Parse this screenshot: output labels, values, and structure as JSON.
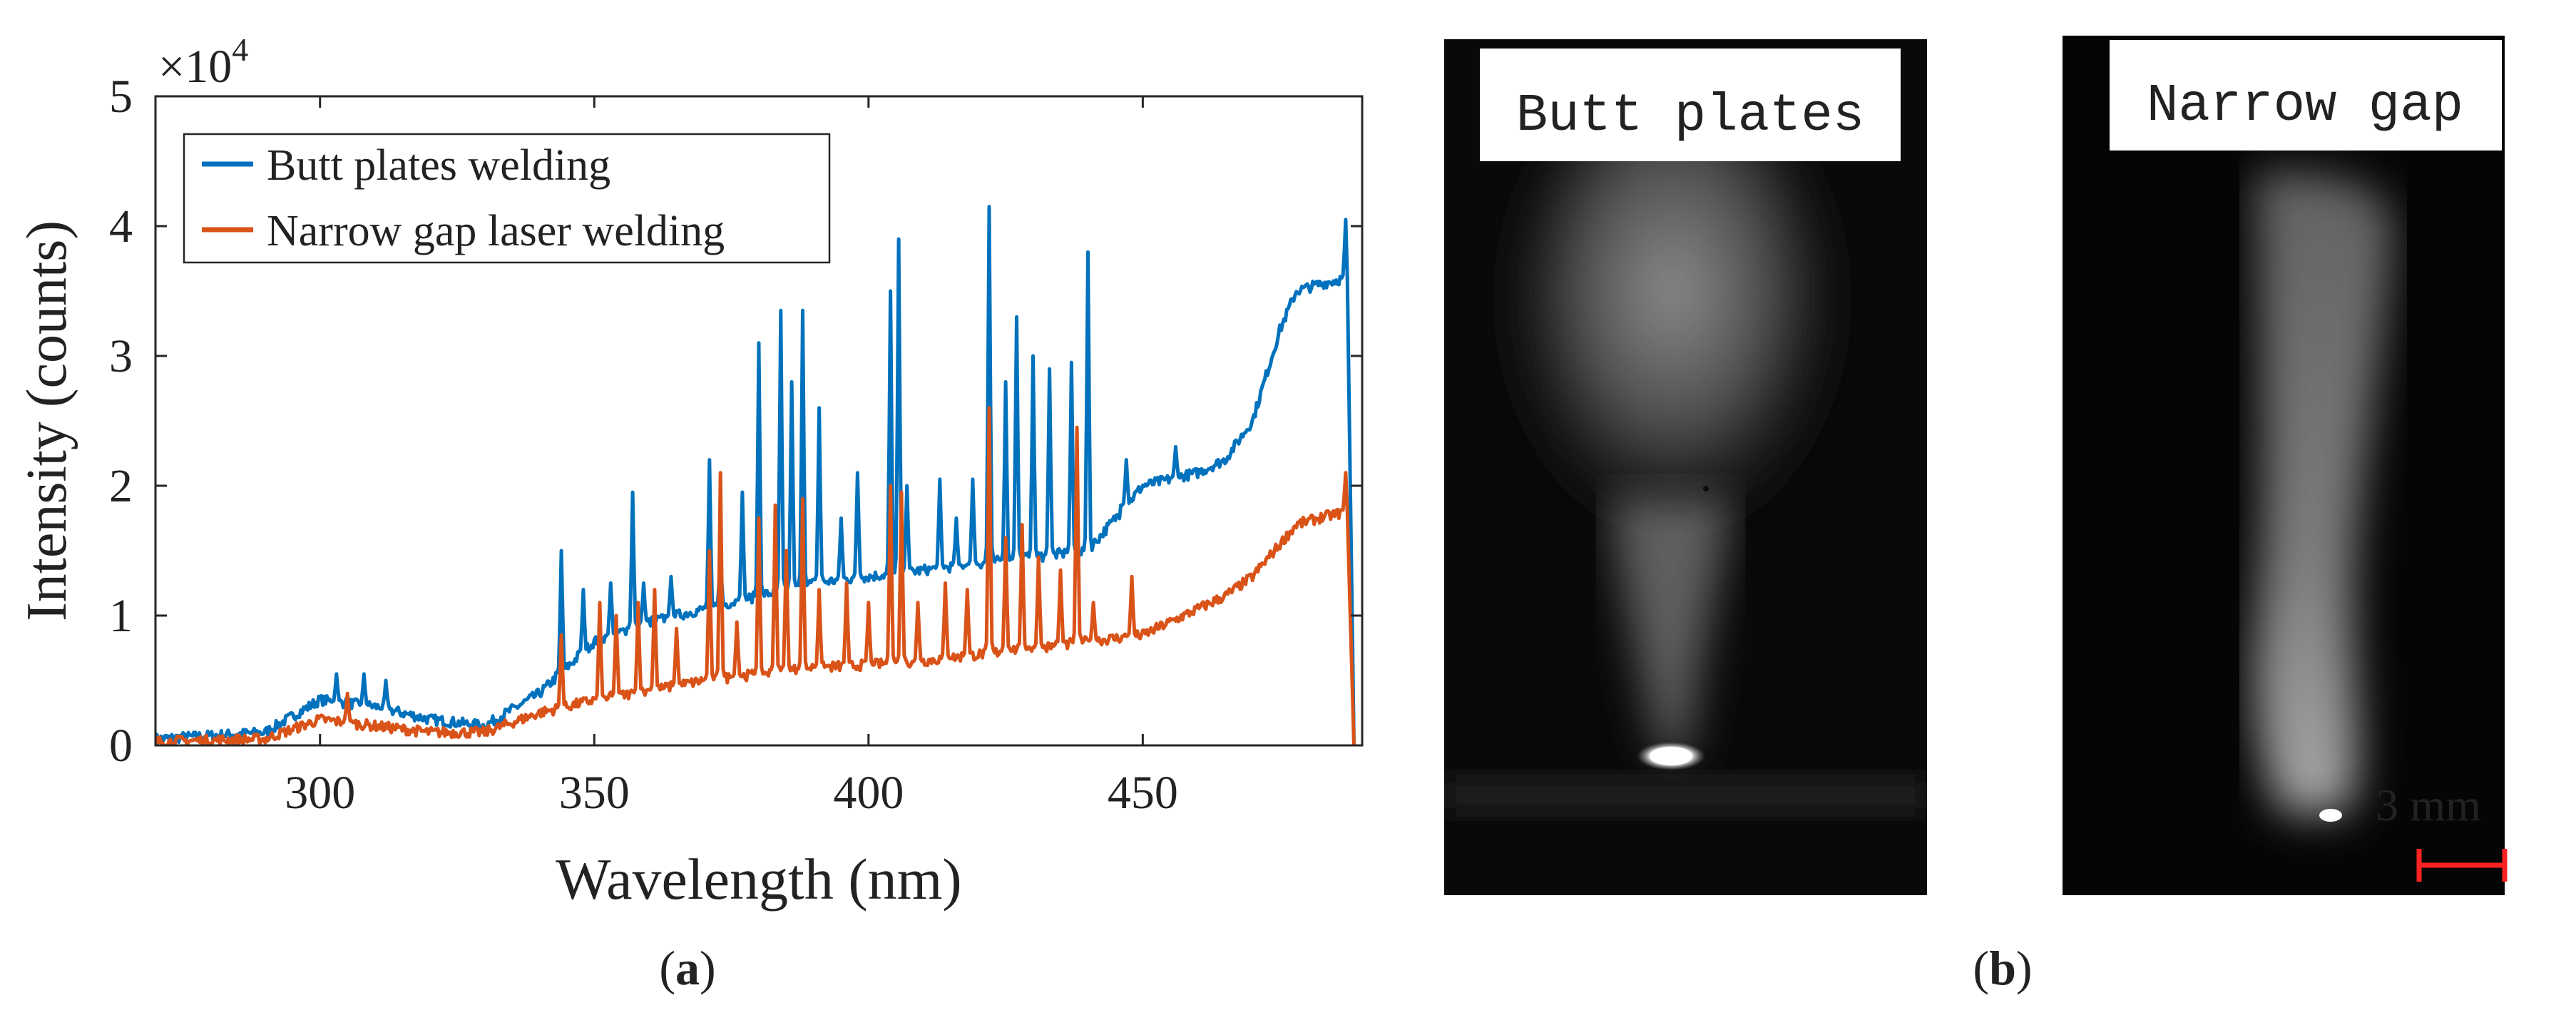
{
  "chart_data": {
    "type": "line",
    "title": "",
    "xlabel": "Wavelength (nm)",
    "ylabel": "Intensity (counts)",
    "y_multiplier_label": "×10",
    "y_multiplier_exponent": "4",
    "xlim": [
      270,
      490
    ],
    "ylim": [
      0,
      5
    ],
    "x_ticks": [
      300,
      350,
      400,
      450
    ],
    "y_ticks": [
      0,
      1,
      2,
      3,
      4,
      5
    ],
    "grid": false,
    "legend_position": "top-left",
    "series": [
      {
        "name": "Butt plates welding",
        "color": "#0072BD",
        "baseline": [
          [
            270,
            0.05
          ],
          [
            290,
            0.1
          ],
          [
            300,
            0.35
          ],
          [
            310,
            0.3
          ],
          [
            320,
            0.2
          ],
          [
            330,
            0.15
          ],
          [
            340,
            0.4
          ],
          [
            350,
            0.8
          ],
          [
            360,
            0.95
          ],
          [
            370,
            1.05
          ],
          [
            380,
            1.15
          ],
          [
            390,
            1.25
          ],
          [
            400,
            1.3
          ],
          [
            410,
            1.35
          ],
          [
            420,
            1.4
          ],
          [
            430,
            1.45
          ],
          [
            440,
            1.5
          ],
          [
            450,
            2.0
          ],
          [
            460,
            2.1
          ],
          [
            465,
            2.2
          ],
          [
            470,
            2.5
          ],
          [
            475,
            3.2
          ],
          [
            478,
            3.5
          ],
          [
            482,
            3.55
          ],
          [
            487,
            3.6
          ],
          [
            488.5,
            0.0
          ]
        ],
        "peaks": [
          [
            303,
            0.55
          ],
          [
            308,
            0.55
          ],
          [
            312,
            0.5
          ],
          [
            344,
            1.5
          ],
          [
            348,
            1.2
          ],
          [
            353,
            1.25
          ],
          [
            357,
            1.95
          ],
          [
            359,
            1.25
          ],
          [
            364,
            1.3
          ],
          [
            371,
            2.2
          ],
          [
            373,
            1.45
          ],
          [
            377,
            1.95
          ],
          [
            380,
            3.1
          ],
          [
            384,
            3.35
          ],
          [
            386,
            2.8
          ],
          [
            388,
            3.35
          ],
          [
            391,
            2.6
          ],
          [
            395,
            1.75
          ],
          [
            398,
            2.1
          ],
          [
            404,
            3.5
          ],
          [
            405.5,
            3.9
          ],
          [
            407,
            2.0
          ],
          [
            413,
            2.05
          ],
          [
            416,
            1.75
          ],
          [
            419,
            2.05
          ],
          [
            422,
            4.15
          ],
          [
            425,
            2.8
          ],
          [
            427,
            3.3
          ],
          [
            430,
            3.0
          ],
          [
            433,
            2.9
          ],
          [
            437,
            2.95
          ],
          [
            440,
            3.8
          ],
          [
            447,
            2.2
          ],
          [
            456,
            2.3
          ],
          [
            487,
            4.05
          ]
        ]
      },
      {
        "name": "Narrow gap laser welding",
        "color": "#D95319",
        "baseline": [
          [
            270,
            0.03
          ],
          [
            290,
            0.05
          ],
          [
            300,
            0.2
          ],
          [
            310,
            0.15
          ],
          [
            320,
            0.1
          ],
          [
            330,
            0.1
          ],
          [
            340,
            0.25
          ],
          [
            350,
            0.35
          ],
          [
            360,
            0.42
          ],
          [
            370,
            0.5
          ],
          [
            380,
            0.55
          ],
          [
            390,
            0.6
          ],
          [
            400,
            0.62
          ],
          [
            410,
            0.65
          ],
          [
            420,
            0.7
          ],
          [
            430,
            0.75
          ],
          [
            440,
            0.8
          ],
          [
            450,
            0.85
          ],
          [
            460,
            1.05
          ],
          [
            465,
            1.15
          ],
          [
            470,
            1.3
          ],
          [
            475,
            1.55
          ],
          [
            478,
            1.7
          ],
          [
            482,
            1.75
          ],
          [
            487,
            1.8
          ],
          [
            488.5,
            0.0
          ]
        ],
        "peaks": [
          [
            305,
            0.4
          ],
          [
            344,
            0.85
          ],
          [
            351,
            1.1
          ],
          [
            354,
            1.0
          ],
          [
            358,
            1.1
          ],
          [
            361,
            1.2
          ],
          [
            365,
            0.9
          ],
          [
            371,
            1.5
          ],
          [
            373,
            2.1
          ],
          [
            376,
            0.95
          ],
          [
            380,
            1.75
          ],
          [
            383,
            1.85
          ],
          [
            385,
            1.5
          ],
          [
            388,
            1.9
          ],
          [
            391,
            1.2
          ],
          [
            396,
            1.25
          ],
          [
            400,
            1.1
          ],
          [
            404,
            2.0
          ],
          [
            406,
            1.95
          ],
          [
            409,
            1.1
          ],
          [
            414,
            1.25
          ],
          [
            418,
            1.2
          ],
          [
            422,
            2.6
          ],
          [
            425,
            1.6
          ],
          [
            428,
            1.7
          ],
          [
            431,
            1.45
          ],
          [
            435,
            1.35
          ],
          [
            438,
            2.45
          ],
          [
            441,
            1.1
          ],
          [
            448,
            1.3
          ],
          [
            487,
            2.1
          ]
        ]
      }
    ]
  },
  "panel_b": {
    "images": [
      {
        "label": "Butt plates"
      },
      {
        "label": "Narrow gap",
        "scale_bar_label": "3 mm",
        "scale_bar_color": "#ff2222"
      }
    ]
  },
  "captions": {
    "a": "a",
    "b": "b"
  }
}
